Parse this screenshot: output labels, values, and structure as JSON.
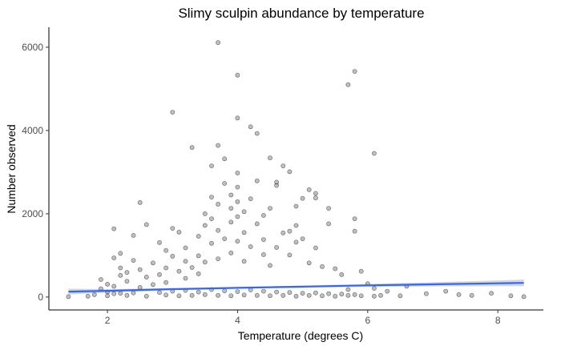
{
  "chart_data": {
    "type": "scatter",
    "title": "Slimy sculpin abundance by temperature",
    "xlabel": "Temperature (degrees C)",
    "ylabel": "Number observed",
    "xlim": [
      1.1,
      8.7
    ],
    "ylim": [
      -310,
      6480
    ],
    "x_ticks": [
      2,
      4,
      6,
      8
    ],
    "y_ticks": [
      0,
      2000,
      4000,
      6000
    ],
    "grid": false,
    "legend": "none",
    "colors": {
      "points": "#000000",
      "point_alpha": 0.25,
      "smooth_line": "#3366FF",
      "confidence_band": "#BDBDBD"
    },
    "points": [
      [
        1.4,
        10
      ],
      [
        1.7,
        20
      ],
      [
        1.8,
        60
      ],
      [
        1.9,
        200
      ],
      [
        1.9,
        420
      ],
      [
        2.0,
        310
      ],
      [
        2.0,
        120
      ],
      [
        2.1,
        80
      ],
      [
        2.1,
        260
      ],
      [
        2.1,
        1640
      ],
      [
        2.1,
        940
      ],
      [
        2.2,
        700
      ],
      [
        2.2,
        520
      ],
      [
        2.2,
        1050
      ],
      [
        2.3,
        380
      ],
      [
        2.3,
        590
      ],
      [
        2.4,
        880
      ],
      [
        2.4,
        1480
      ],
      [
        2.5,
        660
      ],
      [
        2.5,
        230
      ],
      [
        2.5,
        2270
      ],
      [
        2.6,
        480
      ],
      [
        2.6,
        1740
      ],
      [
        2.7,
        300
      ],
      [
        2.7,
        820
      ],
      [
        2.8,
        540
      ],
      [
        2.8,
        1310
      ],
      [
        2.9,
        700
      ],
      [
        2.9,
        1120
      ],
      [
        2.9,
        350
      ],
      [
        3.0,
        4440
      ],
      [
        3.0,
        1650
      ],
      [
        3.0,
        980
      ],
      [
        3.1,
        620
      ],
      [
        3.1,
        1560
      ],
      [
        3.2,
        450
      ],
      [
        3.2,
        1180
      ],
      [
        3.2,
        860
      ],
      [
        3.3,
        3590
      ],
      [
        3.3,
        710
      ],
      [
        3.4,
        1460
      ],
      [
        3.4,
        990
      ],
      [
        3.4,
        560
      ],
      [
        3.5,
        1720
      ],
      [
        3.5,
        2000
      ],
      [
        3.5,
        840
      ],
      [
        3.6,
        3150
      ],
      [
        3.6,
        2400
      ],
      [
        3.6,
        1290
      ],
      [
        3.6,
        1880
      ],
      [
        3.7,
        6110
      ],
      [
        3.7,
        3640
      ],
      [
        3.7,
        2230
      ],
      [
        3.7,
        1600
      ],
      [
        3.7,
        920
      ],
      [
        3.8,
        2730
      ],
      [
        3.8,
        3320
      ],
      [
        3.8,
        1400
      ],
      [
        3.9,
        2450
      ],
      [
        3.9,
        2130
      ],
      [
        3.9,
        1060
      ],
      [
        3.9,
        1800
      ],
      [
        4.0,
        5330
      ],
      [
        4.0,
        4300
      ],
      [
        4.0,
        2980
      ],
      [
        4.0,
        2640
      ],
      [
        4.0,
        2290
      ],
      [
        4.0,
        1930
      ],
      [
        4.0,
        1340
      ],
      [
        4.1,
        2050
      ],
      [
        4.1,
        1550
      ],
      [
        4.1,
        860
      ],
      [
        4.2,
        4090
      ],
      [
        4.2,
        2360
      ],
      [
        4.2,
        1210
      ],
      [
        4.3,
        3930
      ],
      [
        4.3,
        2790
      ],
      [
        4.3,
        1760
      ],
      [
        4.4,
        1020
      ],
      [
        4.4,
        1380
      ],
      [
        4.4,
        1960
      ],
      [
        4.5,
        3340
      ],
      [
        4.5,
        2130
      ],
      [
        4.5,
        760
      ],
      [
        4.6,
        2760
      ],
      [
        4.6,
        2680
      ],
      [
        4.6,
        1190
      ],
      [
        4.7,
        3150
      ],
      [
        4.7,
        1540
      ],
      [
        4.8,
        3010
      ],
      [
        4.8,
        1580
      ],
      [
        4.8,
        1010
      ],
      [
        4.9,
        2180
      ],
      [
        4.9,
        1720
      ],
      [
        4.9,
        1320
      ],
      [
        5.0,
        2370
      ],
      [
        5.0,
        1400
      ],
      [
        5.1,
        2580
      ],
      [
        5.1,
        820
      ],
      [
        5.2,
        2490
      ],
      [
        5.2,
        2380
      ],
      [
        5.2,
        1180
      ],
      [
        5.3,
        730
      ],
      [
        5.4,
        2130
      ],
      [
        5.4,
        1760
      ],
      [
        5.5,
        680
      ],
      [
        5.6,
        540
      ],
      [
        5.7,
        5100
      ],
      [
        5.7,
        180
      ],
      [
        5.8,
        5420
      ],
      [
        5.8,
        1880
      ],
      [
        5.8,
        1580
      ],
      [
        5.9,
        620
      ],
      [
        6.0,
        320
      ],
      [
        6.1,
        3450
      ],
      [
        6.1,
        210
      ],
      [
        6.3,
        140
      ],
      [
        6.6,
        260
      ],
      [
        6.9,
        80
      ],
      [
        7.2,
        140
      ],
      [
        7.4,
        60
      ],
      [
        7.6,
        40
      ],
      [
        7.9,
        90
      ],
      [
        8.2,
        30
      ],
      [
        8.4,
        10
      ],
      [
        2.0,
        30
      ],
      [
        2.3,
        40
      ],
      [
        2.6,
        20
      ],
      [
        2.9,
        50
      ],
      [
        3.1,
        30
      ],
      [
        3.3,
        40
      ],
      [
        3.5,
        60
      ],
      [
        3.7,
        40
      ],
      [
        3.9,
        30
      ],
      [
        4.1,
        50
      ],
      [
        4.3,
        40
      ],
      [
        4.5,
        30
      ],
      [
        4.7,
        40
      ],
      [
        4.9,
        20
      ],
      [
        5.1,
        40
      ],
      [
        5.3,
        30
      ],
      [
        5.5,
        20
      ],
      [
        5.7,
        40
      ],
      [
        5.9,
        30
      ],
      [
        6.1,
        20
      ],
      [
        2.2,
        90
      ],
      [
        2.4,
        100
      ],
      [
        2.8,
        110
      ],
      [
        3.0,
        140
      ],
      [
        3.2,
        160
      ],
      [
        3.4,
        120
      ],
      [
        3.6,
        180
      ],
      [
        3.8,
        150
      ],
      [
        4.0,
        130
      ],
      [
        4.2,
        170
      ],
      [
        4.4,
        140
      ],
      [
        4.6,
        120
      ],
      [
        4.8,
        110
      ],
      [
        5.0,
        90
      ],
      [
        5.2,
        100
      ],
      [
        5.4,
        80
      ],
      [
        5.6,
        70
      ],
      [
        5.8,
        60
      ],
      [
        6.2,
        40
      ],
      [
        6.5,
        30
      ]
    ],
    "smooth_line": {
      "x": [
        1.4,
        2.0,
        3.0,
        4.0,
        5.0,
        6.0,
        7.0,
        8.0,
        8.4
      ],
      "y": [
        130,
        150,
        190,
        220,
        250,
        280,
        305,
        330,
        340
      ]
    },
    "confidence_band": {
      "x": [
        1.4,
        2.0,
        3.0,
        4.0,
        5.0,
        6.0,
        7.0,
        8.0,
        8.4
      ],
      "lower": [
        60,
        110,
        165,
        200,
        225,
        245,
        255,
        260,
        260
      ],
      "upper": [
        200,
        190,
        215,
        240,
        275,
        315,
        355,
        400,
        420
      ]
    }
  }
}
